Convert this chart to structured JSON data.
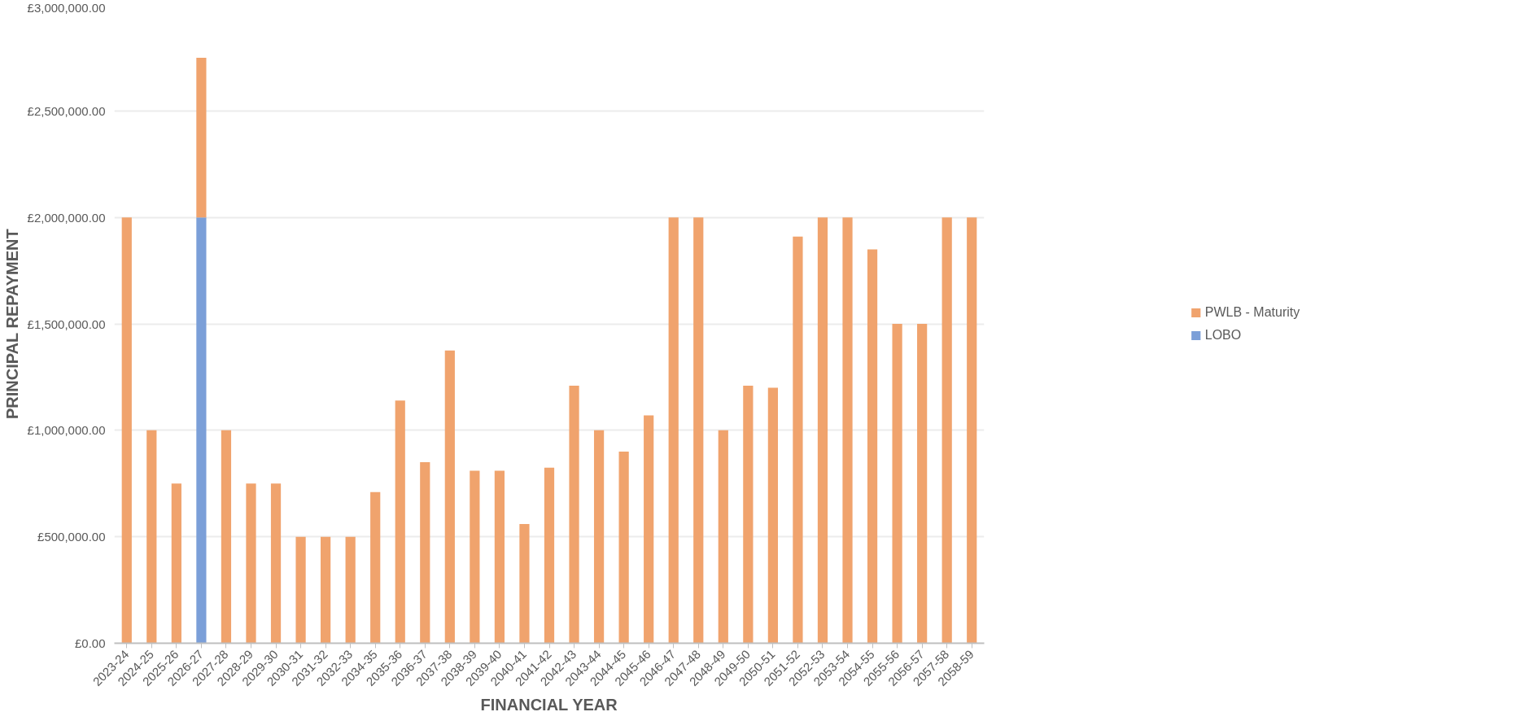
{
  "chart_data": {
    "type": "bar",
    "stacked": true,
    "xlabel": "FINANCIAL YEAR",
    "ylabel": "PRINCIPAL REPAYMENT",
    "categories": [
      "2023-24",
      "2024-25",
      "2025-26",
      "2026-27",
      "2027-28",
      "2028-29",
      "2029-30",
      "2030-31",
      "2031-32",
      "2032-33",
      "2034-35",
      "2035-36",
      "2036-37",
      "2037-38",
      "2038-39",
      "2039-40",
      "2040-41",
      "2041-42",
      "2042-43",
      "2043-44",
      "2044-45",
      "2045-46",
      "2046-47",
      "2047-48",
      "2048-49",
      "2049-50",
      "2050-51",
      "2051-52",
      "2052-53",
      "2053-54",
      "2054-55",
      "2055-56",
      "2056-57",
      "2057-58",
      "2058-59"
    ],
    "series": [
      {
        "name": "LOBO",
        "color": "#7b9fd8",
        "values": [
          null,
          null,
          null,
          2000000,
          null,
          null,
          null,
          null,
          null,
          null,
          null,
          null,
          null,
          null,
          null,
          null,
          null,
          null,
          null,
          null,
          null,
          null,
          null,
          null,
          null,
          null,
          null,
          null,
          null,
          null,
          null,
          null,
          null,
          null,
          null
        ]
      },
      {
        "name": "PWLB - Maturity",
        "color": "#f0a36d",
        "values": [
          2000000,
          1000000,
          750000,
          750000,
          1000000,
          750000,
          750000,
          500000,
          500000,
          500000,
          710000,
          1140000,
          850000,
          1375000,
          810000,
          810000,
          560000,
          825000,
          1210000,
          1000000,
          900000,
          1070000,
          2000000,
          2000000,
          1000000,
          1210000,
          1200000,
          1910000,
          2000000,
          2000000,
          1850000,
          1500000,
          1500000,
          2000000,
          2000000
        ]
      }
    ],
    "ylim": [
      0,
      3000000
    ],
    "yticks": [
      {
        "value": 0,
        "label": "£0.00"
      },
      {
        "value": 500000,
        "label": "£500,000.00"
      },
      {
        "value": 1000000,
        "label": "£1,000,000.00"
      },
      {
        "value": 1500000,
        "label": "£1,500,000.00"
      },
      {
        "value": 2000000,
        "label": "£2,000,000.00"
      },
      {
        "value": 2500000,
        "label": "£2,500,000.00"
      },
      {
        "value": 3000000,
        "label": "£3,000,000.00"
      }
    ],
    "grid": "y",
    "legend": "right"
  }
}
